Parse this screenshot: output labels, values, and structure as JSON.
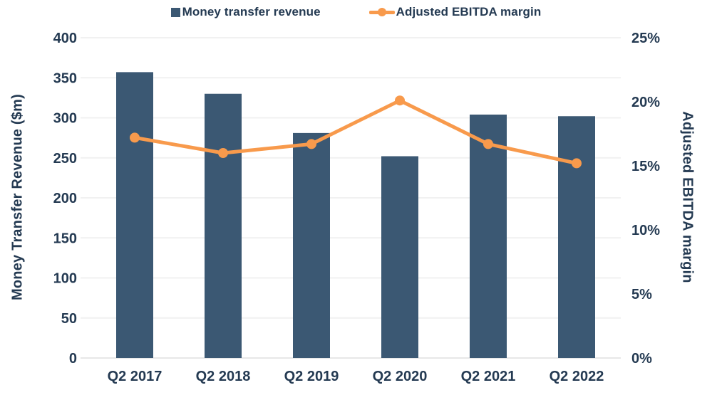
{
  "chart_data": {
    "type": "combo",
    "categories": [
      "Q2 2017",
      "Q2 2018",
      "Q2 2019",
      "Q2 2020",
      "Q2 2021",
      "Q2 2022"
    ],
    "series": [
      {
        "name": "Money transfer revenue",
        "type": "bar",
        "axis": "left",
        "values": [
          357,
          330,
          281,
          252,
          304,
          302
        ],
        "color": "#3b5873"
      },
      {
        "name": "Adjusted EBITDA margin",
        "type": "line",
        "axis": "right",
        "values": [
          17.2,
          16.0,
          16.7,
          20.1,
          16.7,
          15.2
        ],
        "color": "#f89a4c"
      }
    ],
    "left_axis": {
      "label": "Money Transfer Revenue ($m)",
      "min": 0,
      "max": 400,
      "tick_step": 50,
      "tick_labels": [
        "0",
        "50",
        "100",
        "150",
        "200",
        "250",
        "300",
        "350",
        "400"
      ]
    },
    "right_axis": {
      "label": "Adjusted EBITDA margin",
      "min": 0,
      "max": 25,
      "tick_step": 5,
      "tick_labels": [
        "0%",
        "5%",
        "10%",
        "15%",
        "20%",
        "25%"
      ]
    },
    "grid": true,
    "legend_position": "top",
    "title": ""
  },
  "colors": {
    "bar": "#3b5873",
    "line": "#f89a4c",
    "text": "#243a52",
    "gridline": "#f1f1f1",
    "baseline": "#e7e7e7",
    "background": "#ffffff"
  }
}
